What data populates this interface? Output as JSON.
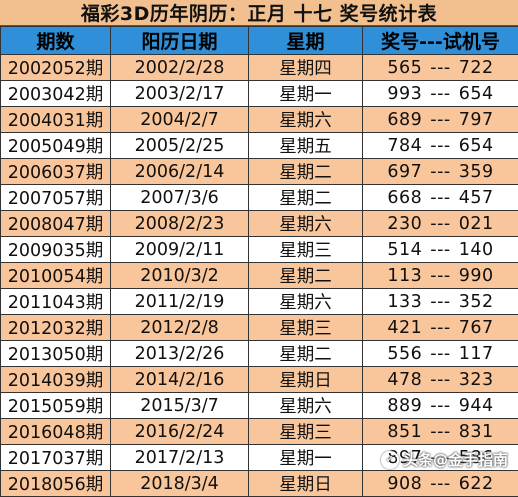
{
  "title": "福彩3D历年阴历：正月 十七 奖号统计表",
  "headers": {
    "issue": "期数",
    "date": "阳历日期",
    "weekday": "星期",
    "numbers": "奖号---试机号"
  },
  "rows": [
    {
      "issue": "2002052期",
      "date": "2002/2/28",
      "weekday": "星期四",
      "draw": "565",
      "sep": "---",
      "test": "722"
    },
    {
      "issue": "2003042期",
      "date": "2003/2/17",
      "weekday": "星期一",
      "draw": "993",
      "sep": "---",
      "test": "654"
    },
    {
      "issue": "2004031期",
      "date": "2004/2/7",
      "weekday": "星期六",
      "draw": "689",
      "sep": "---",
      "test": "797"
    },
    {
      "issue": "2005049期",
      "date": "2005/2/25",
      "weekday": "星期五",
      "draw": "784",
      "sep": "---",
      "test": "654"
    },
    {
      "issue": "2006037期",
      "date": "2006/2/14",
      "weekday": "星期二",
      "draw": "697",
      "sep": "---",
      "test": "359"
    },
    {
      "issue": "2007057期",
      "date": "2007/3/6",
      "weekday": "星期二",
      "draw": "668",
      "sep": "---",
      "test": "457"
    },
    {
      "issue": "2008047期",
      "date": "2008/2/23",
      "weekday": "星期六",
      "draw": "230",
      "sep": "---",
      "test": "021"
    },
    {
      "issue": "2009035期",
      "date": "2009/2/11",
      "weekday": "星期三",
      "draw": "514",
      "sep": "---",
      "test": "140"
    },
    {
      "issue": "2010054期",
      "date": "2010/3/2",
      "weekday": "星期二",
      "draw": "113",
      "sep": "---",
      "test": "990"
    },
    {
      "issue": "2011043期",
      "date": "2011/2/19",
      "weekday": "星期六",
      "draw": "133",
      "sep": "---",
      "test": "352"
    },
    {
      "issue": "2012032期",
      "date": "2012/2/8",
      "weekday": "星期三",
      "draw": "421",
      "sep": "---",
      "test": "767"
    },
    {
      "issue": "2013050期",
      "date": "2013/2/26",
      "weekday": "星期二",
      "draw": "556",
      "sep": "---",
      "test": "117"
    },
    {
      "issue": "2014039期",
      "date": "2014/2/16",
      "weekday": "星期日",
      "draw": "478",
      "sep": "---",
      "test": "323"
    },
    {
      "issue": "2015059期",
      "date": "2015/3/7",
      "weekday": "星期六",
      "draw": "889",
      "sep": "---",
      "test": "944"
    },
    {
      "issue": "2016048期",
      "date": "2016/2/24",
      "weekday": "星期三",
      "draw": "851",
      "sep": "---",
      "test": "831"
    },
    {
      "issue": "2017037期",
      "date": "2017/2/13",
      "weekday": "星期一",
      "draw": "897",
      "sep": "---",
      "test": "586"
    },
    {
      "issue": "2018056期",
      "date": "2018/3/4",
      "weekday": "星期日",
      "draw": "908",
      "sep": "---",
      "test": "622"
    }
  ],
  "watermark": {
    "text": "头条@金手指南",
    "icon": "toutiao-logo-icon"
  },
  "colors": {
    "header_bg": "#2f8fd8",
    "title_bg": "#f2bf8f",
    "odd_row_bg": "#f9c59a",
    "even_row_bg": "#ffffff"
  }
}
